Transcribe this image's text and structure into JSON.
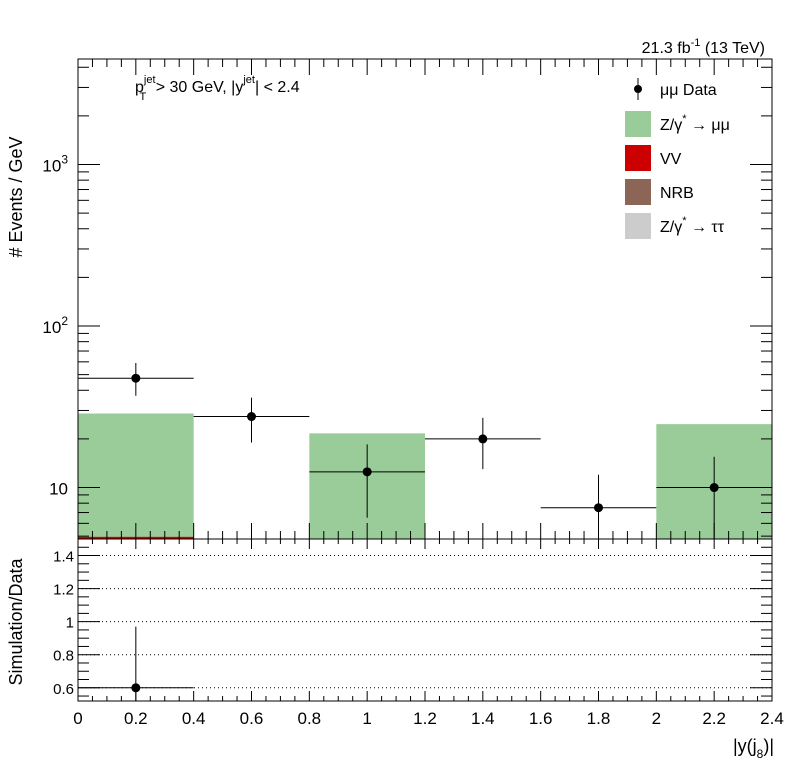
{
  "header": {
    "lumi_label": "21.3 fb",
    "lumi_exp": "-1",
    "lumi_tail": " (13 TeV)"
  },
  "cuts": {
    "part1": "p",
    "part1_sup": "jet",
    "part1_sub": "T",
    "part2": " > 30 GeV,  |y",
    "part2_sup": "jet",
    "part3": "| < 2.4"
  },
  "legend": {
    "data": "μμ Data",
    "zmumu_a": "Z/γ",
    "zmumu_sup": "*",
    "zmumu_b": " → μμ",
    "vv": "VV",
    "nrb": "NRB",
    "ztautau_a": "Z/γ",
    "ztautau_sup": "*",
    "ztautau_b": " → ττ"
  },
  "axes": {
    "top_ylabel": "# Events / GeV",
    "bottom_ylabel": "Simulation/Data",
    "xlabel_a": "|y(j",
    "xlabel_sub": "8",
    "xlabel_b": ")|"
  },
  "colors": {
    "zmumu": "#99cc99",
    "vv": "#cc0000",
    "nrb": "#8b6555",
    "ztautau": "#cccccc",
    "data": "#000000"
  },
  "chart_data": [
    {
      "type": "bar",
      "panel": "main",
      "log_y": true,
      "xlim": [
        0,
        2.4
      ],
      "ylim": [
        4.8,
        4500
      ],
      "x_ticks": [
        "0",
        "0.2",
        "0.4",
        "0.6",
        "0.8",
        "1",
        "1.2",
        "1.4",
        "1.6",
        "1.8",
        "2",
        "2.2",
        "2.4"
      ],
      "y_tick_labels": [
        {
          "value": 10,
          "base": "10",
          "exp": ""
        },
        {
          "value": 100,
          "base": "10",
          "exp": "2"
        },
        {
          "value": 1000,
          "base": "10",
          "exp": "3"
        }
      ],
      "bins": [
        {
          "lo": 0.0,
          "hi": 0.4,
          "zmumu": 28.5,
          "vv": 4.95
        },
        {
          "lo": 0.4,
          "hi": 0.8,
          "zmumu": 0,
          "vv": 0
        },
        {
          "lo": 0.8,
          "hi": 1.2,
          "zmumu": 21.5,
          "vv": 0
        },
        {
          "lo": 1.2,
          "hi": 1.6,
          "zmumu": 0,
          "vv": 0
        },
        {
          "lo": 1.6,
          "hi": 2.0,
          "zmumu": 0,
          "vv": 0
        },
        {
          "lo": 2.0,
          "hi": 2.4,
          "zmumu": 24.5,
          "vv": 0
        }
      ],
      "data_points": [
        {
          "x": 0.2,
          "xlo": 0.0,
          "xhi": 0.4,
          "y": 47.5,
          "ylo": 37,
          "yhi": 59
        },
        {
          "x": 0.6,
          "xlo": 0.4,
          "xhi": 0.8,
          "y": 27.5,
          "ylo": 19,
          "yhi": 36
        },
        {
          "x": 1.0,
          "xlo": 0.8,
          "xhi": 1.2,
          "y": 12.5,
          "ylo": 6.5,
          "yhi": 18.5
        },
        {
          "x": 1.4,
          "xlo": 1.2,
          "xhi": 1.6,
          "y": 20,
          "ylo": 13,
          "yhi": 27
        },
        {
          "x": 1.8,
          "xlo": 1.6,
          "xhi": 2.0,
          "y": 7.5,
          "ylo": 4.8,
          "yhi": 12
        },
        {
          "x": 2.2,
          "xlo": 2.0,
          "xhi": 2.4,
          "y": 10,
          "ylo": 4.8,
          "yhi": 15.5
        }
      ]
    },
    {
      "type": "scatter",
      "panel": "ratio",
      "xlim": [
        0,
        2.4
      ],
      "ylim": [
        0.52,
        1.5
      ],
      "y_ticks": [
        "0.6",
        "0.8",
        "1",
        "1.2",
        "1.4"
      ],
      "points": [
        {
          "x": 0.2,
          "xlo": 0.0,
          "xhi": 0.4,
          "y": 0.6,
          "ylo": 0.52,
          "yhi": 0.97
        }
      ]
    }
  ]
}
